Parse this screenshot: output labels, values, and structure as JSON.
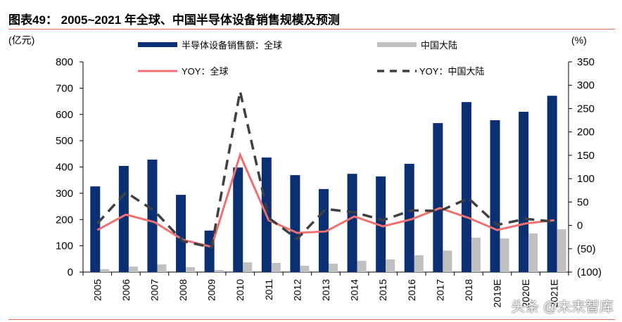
{
  "title": "图表49： 2005~2021 年全球、中国半导体设备销售规模及预测",
  "watermark": "头条 @未来智库",
  "chart_data": {
    "type": "bar+line",
    "categories": [
      "2005",
      "2006",
      "2007",
      "2008",
      "2009",
      "2010",
      "2011",
      "2012",
      "2013",
      "2014",
      "2015",
      "2016",
      "2017",
      "2018",
      "2019E",
      "2020E",
      "2021E"
    ],
    "left_axis": {
      "label": "(亿元)",
      "range": [
        0,
        800
      ],
      "ticks": [
        0,
        100,
        200,
        300,
        400,
        500,
        600,
        700,
        800
      ]
    },
    "right_axis": {
      "label": "(%)",
      "range": [
        -100,
        350
      ],
      "ticks": [
        -100,
        -50,
        0,
        50,
        100,
        150,
        200,
        250,
        300,
        350
      ],
      "tick_labels": [
        "(100)",
        "(50)",
        "0",
        "50",
        "100",
        "150",
        "200",
        "250",
        "300",
        "350"
      ]
    },
    "series": [
      {
        "name": "半导体设备销售额：全球",
        "kind": "bar",
        "axis": "left",
        "color": "#0a2f73",
        "values": [
          326,
          404,
          428,
          294,
          158,
          398,
          436,
          369,
          316,
          374,
          364,
          412,
          567,
          647,
          578,
          610,
          671
        ]
      },
      {
        "name": "中国大陆",
        "kind": "bar",
        "axis": "left",
        "color": "#c0c0c0",
        "values": [
          11,
          21,
          29,
          19,
          8,
          37,
          35,
          24,
          32,
          43,
          48,
          64,
          82,
          131,
          128,
          147,
          163
        ]
      },
      {
        "name": "YOY：全球",
        "kind": "line",
        "axis": "right",
        "color": "#f07070",
        "values": [
          -10,
          23,
          7,
          -31,
          -46,
          151,
          11,
          -16,
          -13,
          19,
          -2,
          13,
          37,
          16,
          -10,
          4,
          11
        ]
      },
      {
        "name": "YOY：中国大陆",
        "kind": "dashed-line",
        "axis": "right",
        "color": "#404040",
        "values": [
          4,
          71,
          31,
          -34,
          -47,
          287,
          16,
          -29,
          35,
          28,
          11,
          32,
          31,
          58,
          1,
          14,
          8
        ]
      }
    ],
    "legend_position": "top",
    "grid": false
  }
}
